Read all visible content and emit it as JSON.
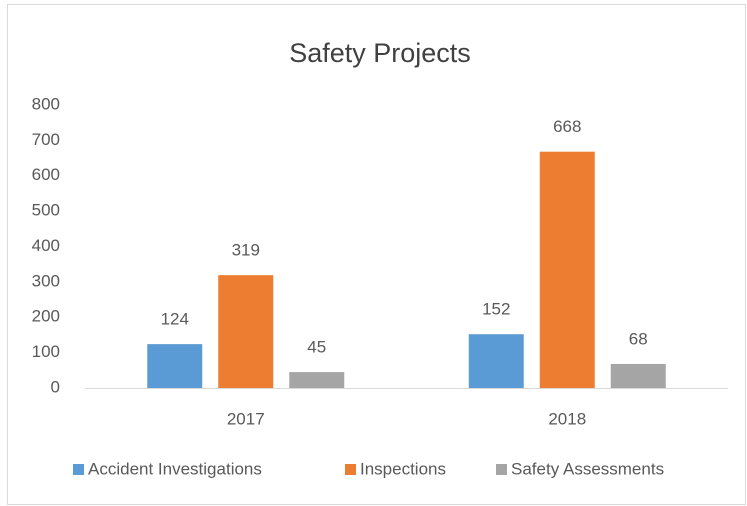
{
  "chart_data": {
    "type": "bar",
    "title": "Safety Projects",
    "categories": [
      "2017",
      "2018"
    ],
    "series": [
      {
        "name": "Accident Investigations",
        "color": "#5b9bd5",
        "values": [
          124,
          152
        ]
      },
      {
        "name": "Inspections",
        "color": "#ed7d31",
        "values": [
          319,
          668
        ]
      },
      {
        "name": "Safety Assessments",
        "color": "#a5a5a5",
        "values": [
          45,
          68
        ]
      }
    ],
    "ylim": [
      0,
      800
    ],
    "yticks": [
      0,
      100,
      200,
      300,
      400,
      500,
      600,
      700,
      800
    ],
    "grid": false,
    "legend": "bottom"
  }
}
